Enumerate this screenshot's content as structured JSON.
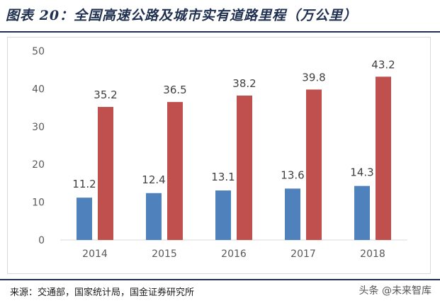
{
  "header": {
    "title": "图表 20：全国高速公路及城市实有道路里程（万公里）"
  },
  "footer": {
    "source": "来源：交通部，国家统计局，国金证券研究所",
    "watermark": "头条 @未来智库"
  },
  "chart_data": {
    "type": "bar",
    "title": "图表 20：全国高速公路及城市实有道路里程（万公里）",
    "categories": [
      "2014",
      "2015",
      "2016",
      "2017",
      "2018"
    ],
    "series": [
      {
        "values": [
          11.2,
          12.4,
          13.1,
          13.6,
          14.3
        ],
        "color": "#4f81bd"
      },
      {
        "values": [
          35.2,
          36.5,
          38.2,
          39.8,
          43.2
        ],
        "color": "#c0504d"
      }
    ],
    "ylim": [
      0,
      50
    ],
    "yticks": [
      "0",
      "10",
      "20",
      "30",
      "40",
      "50"
    ],
    "grid": false,
    "legend": "none"
  }
}
